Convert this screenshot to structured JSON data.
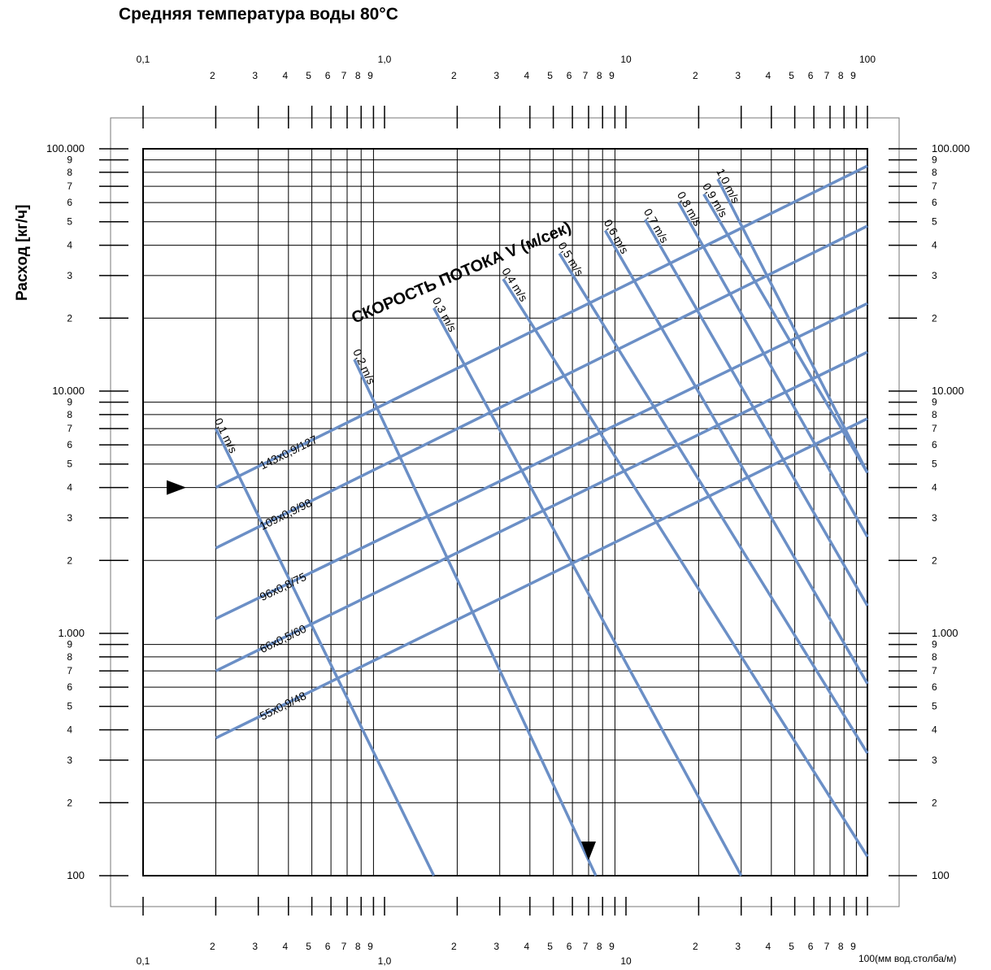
{
  "chart_data": {
    "type": "line",
    "title": "Средняя температура воды 80°С",
    "ylabel": "Расход     [кг/ч]",
    "xlabel": "100(мм вод.столба/м)",
    "x_scale": "log",
    "y_scale": "log",
    "xlim": [
      0.1,
      100
    ],
    "ylim": [
      100,
      100000
    ],
    "grid": true,
    "x_ticks": {
      "decade_labels": [
        "0,1",
        "1,0",
        "10",
        "100"
      ],
      "minor_labels": [
        "2",
        "3",
        "4",
        "5",
        "6",
        "7",
        "8",
        "9"
      ],
      "decade_values": [
        0.1,
        1,
        10,
        100
      ]
    },
    "y_ticks": {
      "decade_labels": [
        "100",
        "1.000",
        "10.000",
        "100.000"
      ],
      "decade_values": [
        100,
        1000,
        10000,
        100000
      ],
      "minor_labels": [
        "2",
        "3",
        "4",
        "5",
        "6",
        "7",
        "8",
        "9"
      ]
    },
    "velocity_axis_title": "СКОРОСТЬ ПОТОКА V (м/сек)",
    "series": [
      {
        "name": "143x0,9/127",
        "kind": "pipe",
        "x": [
          0.2,
          100
        ],
        "y": [
          4000,
          85000
        ]
      },
      {
        "name": "109x0,9/98",
        "kind": "pipe",
        "x": [
          0.2,
          100
        ],
        "y": [
          2250,
          48000
        ]
      },
      {
        "name": "96x0,8/75",
        "kind": "pipe",
        "x": [
          0.2,
          100
        ],
        "y": [
          1150,
          23000
        ]
      },
      {
        "name": "66x0,5/60",
        "kind": "pipe",
        "x": [
          0.2,
          100
        ],
        "y": [
          700,
          14500
        ]
      },
      {
        "name": "55x0,9/48",
        "kind": "pipe",
        "x": [
          0.2,
          100
        ],
        "y": [
          370,
          7700
        ]
      },
      {
        "name": "0,1 m/s",
        "kind": "velocity",
        "x": [
          0.2,
          1.6
        ],
        "y": [
          7000,
          100
        ]
      },
      {
        "name": "0,2 m/s",
        "kind": "velocity",
        "x": [
          0.75,
          7.5
        ],
        "y": [
          13500,
          100
        ]
      },
      {
        "name": "0,3 m/s",
        "kind": "velocity",
        "x": [
          1.6,
          30
        ],
        "y": [
          22000,
          100
        ]
      },
      {
        "name": "0,4 m/s",
        "kind": "velocity",
        "x": [
          3.1,
          100
        ],
        "y": [
          29000,
          120
        ]
      },
      {
        "name": "0,5 m/s",
        "kind": "velocity",
        "x": [
          5.3,
          100
        ],
        "y": [
          37000,
          320
        ]
      },
      {
        "name": "0,6 m/s",
        "kind": "velocity",
        "x": [
          8.2,
          100
        ],
        "y": [
          46000,
          620
        ]
      },
      {
        "name": "0,7 m/s",
        "kind": "velocity",
        "x": [
          12,
          100
        ],
        "y": [
          51000,
          1300
        ]
      },
      {
        "name": "0,8 m/s",
        "kind": "velocity",
        "x": [
          16.5,
          100
        ],
        "y": [
          60000,
          2500
        ]
      },
      {
        "name": "0,9 m/s",
        "kind": "velocity",
        "x": [
          21,
          100
        ],
        "y": [
          65000,
          4600
        ]
      },
      {
        "name": "1,0 m/s",
        "kind": "velocity",
        "x": [
          24,
          100
        ],
        "y": [
          75000,
          4600
        ]
      }
    ],
    "example": {
      "flow": 4000,
      "pressure_drop": 7
    },
    "colors": {
      "lines": "#6b8fc6",
      "grid": "#000000"
    }
  }
}
